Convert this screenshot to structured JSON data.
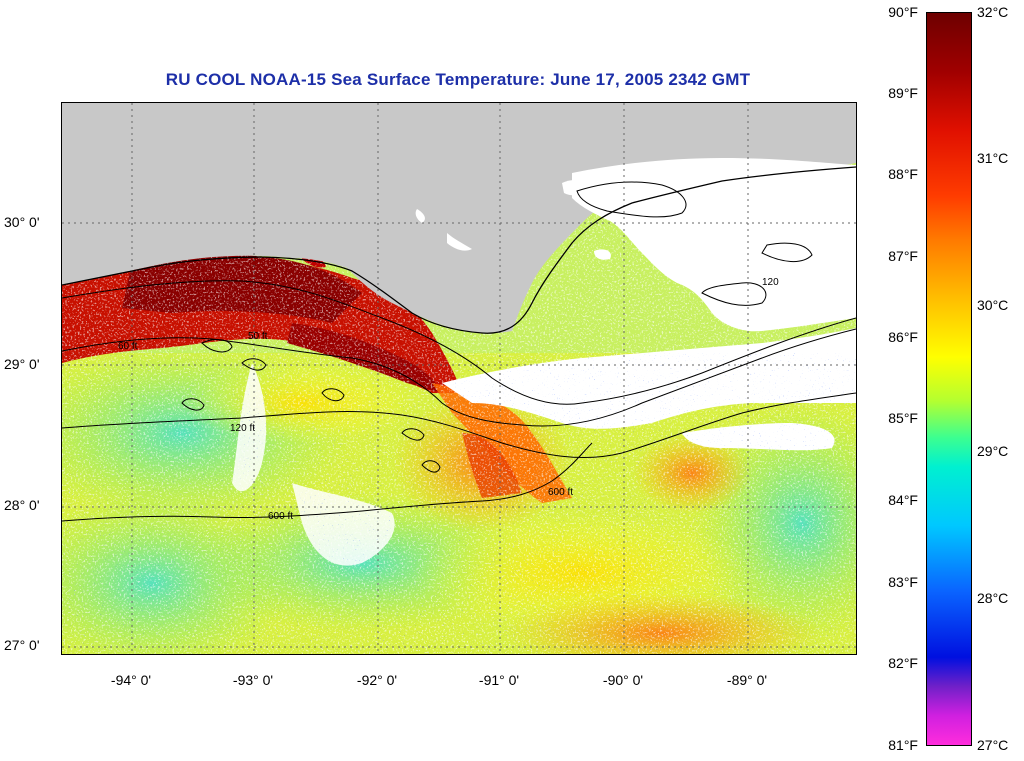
{
  "title": "RU COOL  NOAA-15  Sea Surface Temperature:  June 17, 2005 2342 GMT",
  "latitude_labels": [
    "30° 0'",
    "29° 0'",
    "28° 0'",
    "27° 0'"
  ],
  "longitude_labels": [
    "-94° 0'",
    "-93° 0'",
    "-92° 0'",
    "-91° 0'",
    "-90° 0'",
    "-89° 0'"
  ],
  "contour_labels": [
    "50 ft",
    "60 ft",
    "120 ft",
    "600 ft",
    "120",
    "600 ft"
  ],
  "colorbar": {
    "fahrenheit_labels": [
      "90°F",
      "89°F",
      "88°F",
      "87°F",
      "86°F",
      "85°F",
      "84°F",
      "83°F",
      "82°F",
      "81°F"
    ],
    "celsius_labels": [
      "32°C",
      "31°C",
      "30°C",
      "29°C",
      "28°C",
      "27°C"
    ]
  },
  "colors": {
    "title": "#1d2fa8",
    "land": "#c8c8c8",
    "no_data": "#ffffff"
  }
}
